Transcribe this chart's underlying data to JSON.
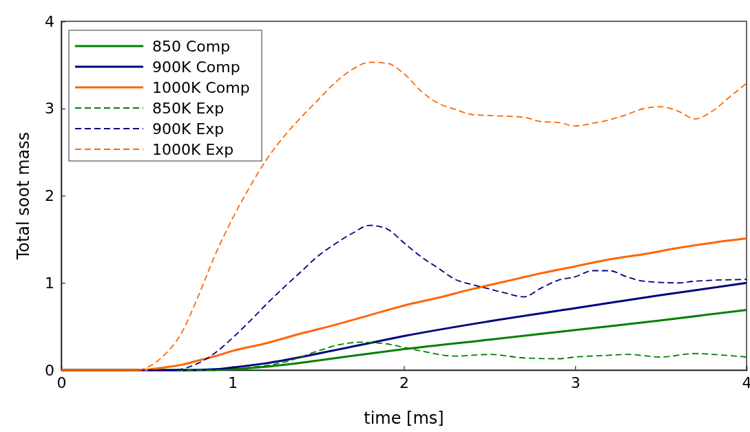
{
  "chart_data": {
    "type": "line",
    "xlabel": "time [ms]",
    "ylabel": "Total soot mass",
    "xlim": [
      0,
      4
    ],
    "ylim": [
      0,
      4
    ],
    "xticks": [
      0,
      1,
      2,
      3,
      4
    ],
    "yticks": [
      0,
      1,
      2,
      3,
      4
    ],
    "grid": false,
    "legend": "top left",
    "series": [
      {
        "name": "850 Comp",
        "color": "#008000",
        "line_style": "solid",
        "x": [
          0,
          0.8,
          1.0,
          1.2,
          1.5,
          1.8,
          2.0,
          2.5,
          3.0,
          3.5,
          4.0
        ],
        "values": [
          0,
          0,
          0.01,
          0.04,
          0.11,
          0.19,
          0.24,
          0.35,
          0.46,
          0.57,
          0.69
        ]
      },
      {
        "name": "900K Comp",
        "color": "#000080",
        "line_style": "solid",
        "x": [
          0,
          0.7,
          0.9,
          1.0,
          1.2,
          1.4,
          1.6,
          1.8,
          2.0,
          2.5,
          3.0,
          3.5,
          4.0
        ],
        "values": [
          0,
          0,
          0.01,
          0.03,
          0.08,
          0.15,
          0.23,
          0.31,
          0.39,
          0.56,
          0.71,
          0.86,
          1.0
        ]
      },
      {
        "name": "1000K Comp",
        "color": "#ff6600",
        "line_style": "solid",
        "x": [
          0,
          0.45,
          0.6,
          0.7,
          0.8,
          0.9,
          1.0,
          1.2,
          1.4,
          1.6,
          1.8,
          2.0,
          2.2,
          2.4,
          2.6,
          2.8,
          3.0,
          3.2,
          3.4,
          3.6,
          3.8,
          4.0
        ],
        "values": [
          0,
          0,
          0.03,
          0.06,
          0.11,
          0.16,
          0.22,
          0.31,
          0.42,
          0.52,
          0.63,
          0.74,
          0.83,
          0.93,
          1.02,
          1.11,
          1.19,
          1.27,
          1.33,
          1.4,
          1.46,
          1.51
        ]
      },
      {
        "name": "850K Exp",
        "color": "#008000",
        "line_style": "dashed",
        "x": [
          0,
          0.9,
          1.1,
          1.3,
          1.5,
          1.6,
          1.75,
          1.9,
          2.0,
          2.1,
          2.3,
          2.5,
          2.7,
          2.9,
          3.0,
          3.2,
          3.3,
          3.5,
          3.7,
          3.8,
          4.0
        ],
        "values": [
          0,
          0,
          0.03,
          0.09,
          0.22,
          0.28,
          0.32,
          0.3,
          0.26,
          0.22,
          0.16,
          0.18,
          0.14,
          0.13,
          0.15,
          0.17,
          0.18,
          0.15,
          0.19,
          0.18,
          0.15
        ]
      },
      {
        "name": "900K Exp",
        "color": "#000080",
        "line_style": "dashed",
        "x": [
          0,
          0.65,
          0.8,
          0.9,
          1.0,
          1.1,
          1.2,
          1.3,
          1.4,
          1.5,
          1.6,
          1.7,
          1.8,
          1.9,
          2.0,
          2.1,
          2.2,
          2.3,
          2.4,
          2.5,
          2.6,
          2.7,
          2.8,
          2.9,
          3.0,
          3.1,
          3.2,
          3.3,
          3.4,
          3.6,
          3.7,
          4.0
        ],
        "values": [
          0,
          0,
          0.08,
          0.2,
          0.37,
          0.56,
          0.76,
          0.95,
          1.13,
          1.31,
          1.45,
          1.57,
          1.66,
          1.62,
          1.46,
          1.3,
          1.17,
          1.04,
          0.98,
          0.93,
          0.88,
          0.84,
          0.94,
          1.03,
          1.07,
          1.14,
          1.14,
          1.07,
          1.02,
          1.0,
          1.02,
          1.04
        ]
      },
      {
        "name": "1000K Exp",
        "color": "#ff6600",
        "line_style": "dashed",
        "x": [
          0,
          0.45,
          0.5,
          0.6,
          0.7,
          0.8,
          0.9,
          1.0,
          1.1,
          1.2,
          1.3,
          1.4,
          1.5,
          1.6,
          1.7,
          1.8,
          1.9,
          2.0,
          2.1,
          2.2,
          2.3,
          2.4,
          2.5,
          2.7,
          2.8,
          2.9,
          3.0,
          3.1,
          3.2,
          3.3,
          3.4,
          3.5,
          3.6,
          3.7,
          3.8,
          3.9,
          4.0
        ],
        "values": [
          0,
          0,
          0.03,
          0.17,
          0.42,
          0.85,
          1.33,
          1.74,
          2.1,
          2.42,
          2.68,
          2.9,
          3.1,
          3.3,
          3.45,
          3.53,
          3.52,
          3.4,
          3.2,
          3.06,
          2.99,
          2.93,
          2.92,
          2.9,
          2.85,
          2.84,
          2.8,
          2.83,
          2.87,
          2.93,
          3.0,
          3.02,
          2.97,
          2.88,
          2.97,
          3.13,
          3.29
        ]
      }
    ]
  }
}
